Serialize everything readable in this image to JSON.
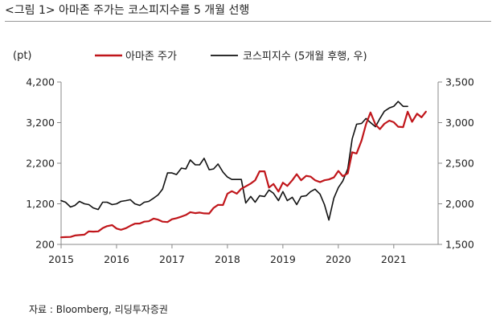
{
  "figure": {
    "title": "<그림 1> 아마존 주가는 코스피지수를 5 개월 선행",
    "unit": "(pt)",
    "source": "자료 : Bloomberg, 리딩투자증권"
  },
  "colors": {
    "series_red": "#c0161b",
    "series_black": "#111111",
    "axis": "#888888"
  },
  "chart_data": {
    "type": "line",
    "title": "아마존 주가는 코스피지수를 5 개월 선행",
    "x_ticks": [
      "2015",
      "2016",
      "2017",
      "2018",
      "2019",
      "2020",
      "2021"
    ],
    "x_range": [
      2015.0,
      2021.8
    ],
    "y_left": {
      "label": "(pt)",
      "range": [
        200,
        4200
      ],
      "ticks": [
        "200",
        "1,200",
        "2,200",
        "3,200",
        "4,200"
      ]
    },
    "y_right": {
      "range": [
        1500,
        3500
      ],
      "ticks": [
        "1,500",
        "2,000",
        "2,500",
        "3,000",
        "3,500"
      ]
    },
    "legend_position": "top-center",
    "grid": false,
    "series": [
      {
        "name": "아마존 주가",
        "axis": "left",
        "color": "#c0161b",
        "points": [
          [
            2015.0,
            375
          ],
          [
            2015.08,
            380
          ],
          [
            2015.17,
            385
          ],
          [
            2015.25,
            420
          ],
          [
            2015.33,
            430
          ],
          [
            2015.42,
            440
          ],
          [
            2015.5,
            520
          ],
          [
            2015.58,
            515
          ],
          [
            2015.67,
            520
          ],
          [
            2015.75,
            600
          ],
          [
            2015.83,
            650
          ],
          [
            2015.92,
            675
          ],
          [
            2016.0,
            590
          ],
          [
            2016.08,
            560
          ],
          [
            2016.17,
            600
          ],
          [
            2016.25,
            660
          ],
          [
            2016.33,
            710
          ],
          [
            2016.42,
            715
          ],
          [
            2016.5,
            760
          ],
          [
            2016.58,
            770
          ],
          [
            2016.67,
            835
          ],
          [
            2016.75,
            810
          ],
          [
            2016.83,
            760
          ],
          [
            2016.92,
            750
          ],
          [
            2017.0,
            820
          ],
          [
            2017.08,
            845
          ],
          [
            2017.17,
            885
          ],
          [
            2017.25,
            925
          ],
          [
            2017.33,
            995
          ],
          [
            2017.42,
            970
          ],
          [
            2017.5,
            985
          ],
          [
            2017.58,
            965
          ],
          [
            2017.67,
            960
          ],
          [
            2017.75,
            1100
          ],
          [
            2017.83,
            1175
          ],
          [
            2017.92,
            1170
          ],
          [
            2018.0,
            1450
          ],
          [
            2018.08,
            1510
          ],
          [
            2018.17,
            1450
          ],
          [
            2018.25,
            1570
          ],
          [
            2018.33,
            1630
          ],
          [
            2018.42,
            1700
          ],
          [
            2018.5,
            1780
          ],
          [
            2018.58,
            2000
          ],
          [
            2018.67,
            2000
          ],
          [
            2018.75,
            1600
          ],
          [
            2018.83,
            1690
          ],
          [
            2018.92,
            1500
          ],
          [
            2019.0,
            1720
          ],
          [
            2019.08,
            1640
          ],
          [
            2019.17,
            1780
          ],
          [
            2019.25,
            1930
          ],
          [
            2019.33,
            1780
          ],
          [
            2019.42,
            1890
          ],
          [
            2019.5,
            1870
          ],
          [
            2019.58,
            1780
          ],
          [
            2019.67,
            1735
          ],
          [
            2019.75,
            1780
          ],
          [
            2019.83,
            1800
          ],
          [
            2019.92,
            1850
          ],
          [
            2020.0,
            2010
          ],
          [
            2020.08,
            1880
          ],
          [
            2020.17,
            1950
          ],
          [
            2020.25,
            2470
          ],
          [
            2020.33,
            2440
          ],
          [
            2020.42,
            2760
          ],
          [
            2020.5,
            3160
          ],
          [
            2020.58,
            3450
          ],
          [
            2020.67,
            3150
          ],
          [
            2020.75,
            3040
          ],
          [
            2020.83,
            3170
          ],
          [
            2020.92,
            3250
          ],
          [
            2021.0,
            3210
          ],
          [
            2021.08,
            3100
          ],
          [
            2021.17,
            3090
          ],
          [
            2021.25,
            3470
          ],
          [
            2021.33,
            3220
          ],
          [
            2021.42,
            3420
          ],
          [
            2021.5,
            3330
          ],
          [
            2021.58,
            3470
          ]
        ]
      },
      {
        "name": "코스피지수 (5개월 후행, 우)",
        "axis": "right",
        "color": "#111111",
        "points": [
          [
            2015.0,
            2040
          ],
          [
            2015.08,
            2020
          ],
          [
            2015.17,
            1960
          ],
          [
            2015.25,
            1980
          ],
          [
            2015.33,
            2030
          ],
          [
            2015.42,
            2000
          ],
          [
            2015.5,
            1990
          ],
          [
            2015.58,
            1950
          ],
          [
            2015.67,
            1930
          ],
          [
            2015.75,
            2020
          ],
          [
            2015.83,
            2020
          ],
          [
            2015.92,
            1990
          ],
          [
            2016.0,
            2000
          ],
          [
            2016.08,
            2030
          ],
          [
            2016.17,
            2040
          ],
          [
            2016.25,
            2050
          ],
          [
            2016.33,
            2000
          ],
          [
            2016.42,
            1980
          ],
          [
            2016.5,
            2020
          ],
          [
            2016.58,
            2030
          ],
          [
            2016.67,
            2070
          ],
          [
            2016.75,
            2110
          ],
          [
            2016.83,
            2180
          ],
          [
            2016.92,
            2380
          ],
          [
            2017.0,
            2380
          ],
          [
            2017.08,
            2360
          ],
          [
            2017.17,
            2440
          ],
          [
            2017.25,
            2430
          ],
          [
            2017.33,
            2540
          ],
          [
            2017.42,
            2480
          ],
          [
            2017.5,
            2480
          ],
          [
            2017.58,
            2560
          ],
          [
            2017.67,
            2420
          ],
          [
            2017.75,
            2430
          ],
          [
            2017.83,
            2490
          ],
          [
            2017.92,
            2390
          ],
          [
            2018.0,
            2330
          ],
          [
            2018.08,
            2300
          ],
          [
            2018.17,
            2300
          ],
          [
            2018.25,
            2300
          ],
          [
            2018.33,
            2010
          ],
          [
            2018.42,
            2090
          ],
          [
            2018.5,
            2020
          ],
          [
            2018.58,
            2100
          ],
          [
            2018.67,
            2090
          ],
          [
            2018.75,
            2170
          ],
          [
            2018.83,
            2130
          ],
          [
            2018.92,
            2040
          ],
          [
            2019.0,
            2150
          ],
          [
            2019.08,
            2040
          ],
          [
            2019.17,
            2080
          ],
          [
            2019.25,
            1990
          ],
          [
            2019.33,
            2090
          ],
          [
            2019.42,
            2100
          ],
          [
            2019.5,
            2150
          ],
          [
            2019.58,
            2180
          ],
          [
            2019.67,
            2120
          ],
          [
            2019.75,
            1990
          ],
          [
            2019.83,
            1800
          ],
          [
            2019.92,
            2070
          ],
          [
            2020.0,
            2200
          ],
          [
            2020.08,
            2280
          ],
          [
            2020.17,
            2430
          ],
          [
            2020.25,
            2800
          ],
          [
            2020.33,
            2980
          ],
          [
            2020.42,
            2990
          ],
          [
            2020.5,
            3050
          ],
          [
            2020.58,
            3000
          ],
          [
            2020.67,
            2950
          ],
          [
            2020.75,
            3050
          ],
          [
            2020.83,
            3140
          ],
          [
            2020.92,
            3180
          ],
          [
            2021.0,
            3200
          ],
          [
            2021.08,
            3260
          ],
          [
            2021.17,
            3200
          ],
          [
            2021.25,
            3200
          ]
        ]
      }
    ]
  }
}
